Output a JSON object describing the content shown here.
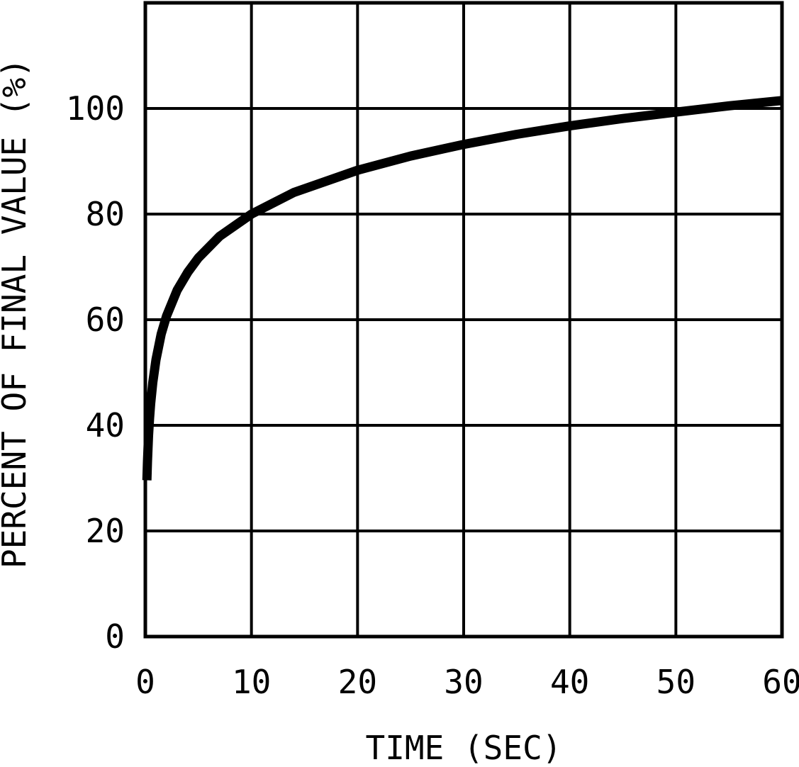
{
  "colors": {
    "ink": "#000000",
    "background": "#ffffff"
  },
  "chart_data": {
    "type": "line",
    "title": "",
    "xlabel": "TIME (SEC)",
    "ylabel": "PERCENT OF FINAL VALUE (%)",
    "xlim": [
      0,
      60
    ],
    "ylim": [
      0,
      120
    ],
    "x_ticks": [
      0,
      10,
      20,
      30,
      40,
      50,
      60
    ],
    "y_ticks": [
      0,
      20,
      40,
      60,
      80,
      100
    ],
    "grid": true,
    "legend": "none",
    "series": [
      {
        "name": "percent-of-final-value",
        "points": [
          [
            0.15,
            29.6
          ],
          [
            0.2,
            33.1
          ],
          [
            0.3,
            38.0
          ],
          [
            0.4,
            41.4
          ],
          [
            0.5,
            44.1
          ],
          [
            0.7,
            48.1
          ],
          [
            1,
            52.4
          ],
          [
            1.5,
            57.3
          ],
          [
            2,
            60.7
          ],
          [
            3,
            65.6
          ],
          [
            4,
            69.0
          ],
          [
            5,
            71.7
          ],
          [
            7,
            75.8
          ],
          [
            10,
            80.0
          ],
          [
            14,
            84.1
          ],
          [
            20,
            88.3
          ],
          [
            25,
            91.0
          ],
          [
            30,
            93.2
          ],
          [
            35,
            95.1
          ],
          [
            40,
            96.7
          ],
          [
            45,
            98.1
          ],
          [
            50,
            99.3
          ],
          [
            55,
            100.5
          ],
          [
            60,
            101.5
          ]
        ]
      }
    ]
  }
}
